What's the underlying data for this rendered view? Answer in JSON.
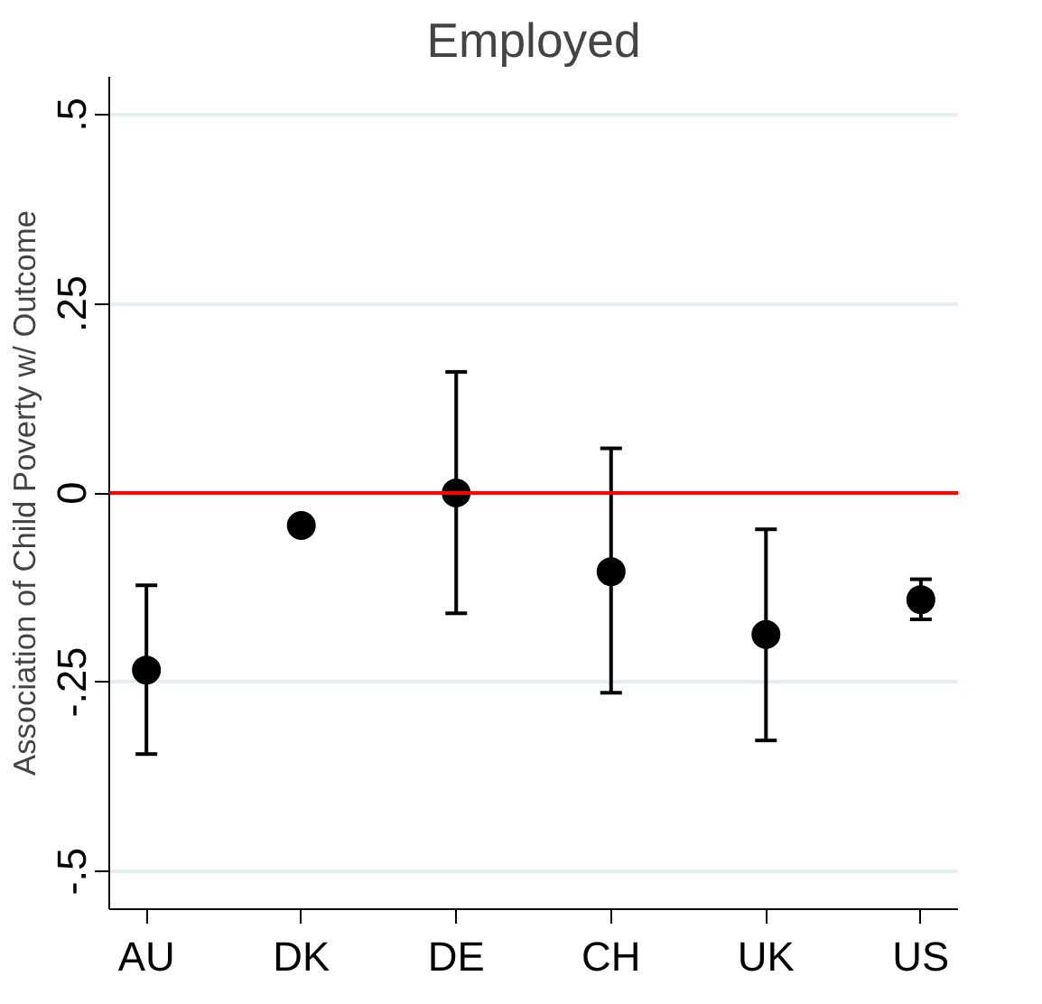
{
  "chart_data": {
    "type": "scatter",
    "title": "Employed",
    "ylabel": "Association of Child Poverty w/ Outcome",
    "categories": [
      "AU",
      "DK",
      "DE",
      "CH",
      "UK",
      "US"
    ],
    "values": [
      -0.234,
      -0.043,
      0.0,
      -0.104,
      -0.187,
      -0.141
    ],
    "errors": [
      [
        -0.345,
        -0.122
      ],
      null,
      [
        -0.159,
        0.16
      ],
      [
        -0.264,
        0.059
      ],
      [
        -0.327,
        -0.048
      ],
      [
        -0.167,
        -0.114
      ]
    ],
    "color": "#000000",
    "marker": "circle",
    "ylim": [
      -0.55,
      0.55
    ],
    "yticks": [
      {
        "value": -0.5,
        "label": "-.5"
      },
      {
        "value": -0.25,
        "label": "-.25"
      },
      0,
      {
        "value": 0.25,
        "label": ".25"
      },
      {
        "value": 0.5,
        "label": ".5"
      }
    ],
    "grid": "y",
    "ref_lines": [
      {
        "axis": "y",
        "value": 0,
        "color": "#ff0000"
      }
    ]
  }
}
